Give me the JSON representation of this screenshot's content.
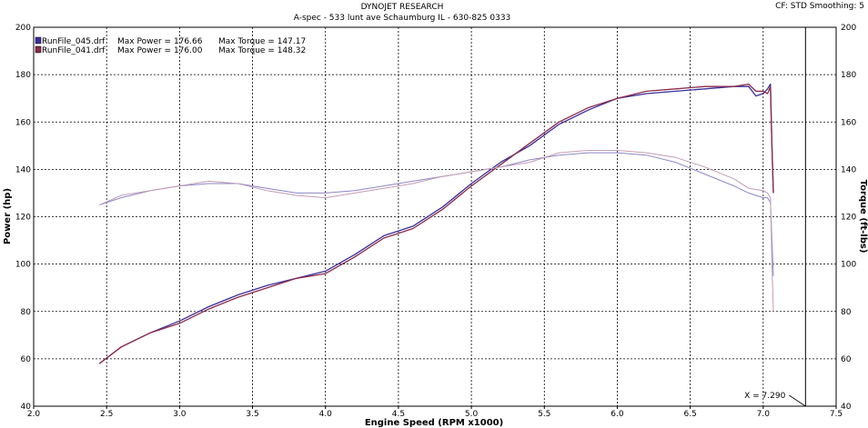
{
  "header": {
    "title": "DYNOJET RESEARCH",
    "subtitle": "A-spec - 533 lunt ave Schaumburg IL - 630-825 0333",
    "settings": "CF: STD  Smoothing: 5"
  },
  "chart_data": {
    "type": "line",
    "xlabel": "Engine Speed (RPM x1000)",
    "ylabel": "Power (hp)",
    "y2label": "Torque (ft-lbs)",
    "xlim": [
      2.0,
      7.5
    ],
    "ylim": [
      40,
      200
    ],
    "y2lim": [
      40,
      200
    ],
    "x_ticks": [
      "2.0",
      "2.5",
      "3.0",
      "3.5",
      "4.0",
      "4.5",
      "5.0",
      "5.5",
      "6.0",
      "6.5",
      "7.0",
      "7.5"
    ],
    "y_ticks": [
      "40",
      "60",
      "80",
      "100",
      "120",
      "140",
      "160",
      "180",
      "200"
    ],
    "grid": true,
    "cursor": {
      "label": "X = 7.290",
      "x": 7.29
    },
    "legend": [
      {
        "file": "RunFile_045.drf",
        "power": "Max Power = 176.66",
        "torque": "Max Torque = 147.17",
        "color": "#3a2f9e"
      },
      {
        "file": "RunFile_041.drf",
        "power": "Max Power = 176.00",
        "torque": "Max Torque = 148.32",
        "color": "#8a2a4a"
      }
    ],
    "series": [
      {
        "name": "RunFile_045.drf",
        "measure": "Max Power",
        "axis": "left",
        "color": "#3a2f9e",
        "width": 1.3,
        "x": [
          2.45,
          2.6,
          2.8,
          3.0,
          3.2,
          3.4,
          3.6,
          3.8,
          4.0,
          4.2,
          4.4,
          4.6,
          4.8,
          5.0,
          5.2,
          5.4,
          5.6,
          5.8,
          6.0,
          6.2,
          6.4,
          6.6,
          6.8,
          6.9,
          6.95,
          7.0,
          7.03,
          7.05,
          7.06,
          7.07
        ],
        "y": [
          58,
          65,
          71,
          76,
          82,
          87,
          91,
          94,
          97,
          104,
          112,
          116,
          124,
          134,
          143,
          150,
          159,
          165,
          170,
          172,
          173,
          174,
          175,
          175,
          171,
          172,
          174,
          176,
          150,
          130
        ]
      },
      {
        "name": "RunFile_041.drf",
        "measure": "Max Power",
        "axis": "left",
        "color": "#8a2a4a",
        "width": 1.3,
        "x": [
          2.45,
          2.6,
          2.8,
          3.0,
          3.2,
          3.4,
          3.6,
          3.8,
          4.0,
          4.2,
          4.4,
          4.6,
          4.8,
          5.0,
          5.2,
          5.4,
          5.6,
          5.8,
          6.0,
          6.2,
          6.4,
          6.6,
          6.8,
          6.9,
          6.95,
          7.0,
          7.03,
          7.05,
          7.06,
          7.07
        ],
        "y": [
          58,
          65,
          71,
          75,
          81,
          86,
          90,
          94,
          96,
          103,
          111,
          115,
          123,
          133,
          142,
          151,
          160,
          166,
          170,
          173,
          174,
          175,
          175,
          176,
          173,
          173,
          172,
          175,
          150,
          130
        ]
      },
      {
        "name": "RunFile_045.drf",
        "measure": "Max Torque",
        "axis": "right",
        "color": "#8d86c6",
        "width": 1.0,
        "x": [
          2.45,
          2.6,
          2.8,
          3.0,
          3.2,
          3.4,
          3.6,
          3.8,
          4.0,
          4.2,
          4.4,
          4.6,
          4.8,
          5.0,
          5.2,
          5.4,
          5.6,
          5.8,
          6.0,
          6.2,
          6.4,
          6.6,
          6.8,
          6.9,
          7.0,
          7.03,
          7.05,
          7.06,
          7.07
        ],
        "y": [
          125,
          128,
          131,
          133,
          134,
          134,
          132,
          130,
          130,
          131,
          133,
          135,
          137,
          139,
          141,
          144,
          146,
          147,
          147,
          146,
          143,
          138,
          133,
          130,
          128,
          128,
          126,
          110,
          95
        ]
      },
      {
        "name": "RunFile_041.drf",
        "measure": "Max Torque",
        "axis": "right",
        "color": "#c39bb5",
        "width": 1.0,
        "x": [
          2.45,
          2.6,
          2.8,
          3.0,
          3.2,
          3.4,
          3.6,
          3.8,
          4.0,
          4.2,
          4.4,
          4.6,
          4.8,
          5.0,
          5.2,
          5.4,
          5.6,
          5.8,
          6.0,
          6.2,
          6.4,
          6.6,
          6.8,
          6.9,
          7.0,
          7.03,
          7.05,
          7.06,
          7.07
        ],
        "y": [
          125,
          129,
          131,
          133,
          135,
          134,
          131,
          129,
          128,
          130,
          132,
          134,
          137,
          139,
          141,
          143,
          147,
          148,
          148,
          147,
          145,
          141,
          136,
          132,
          131,
          130,
          128,
          100,
          80
        ]
      }
    ]
  }
}
